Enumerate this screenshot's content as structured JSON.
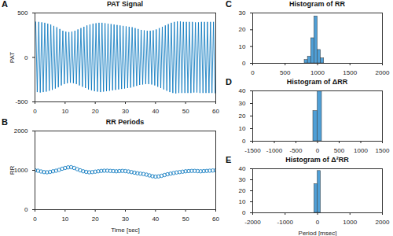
{
  "chart_data": [
    {
      "panel_label": "A",
      "type": "line",
      "title": "PAT Signal",
      "ylabel": "PAT",
      "color": "#0072bd",
      "xlim": [
        0,
        60
      ],
      "xticks": [
        0,
        10,
        20,
        30,
        40,
        50,
        60
      ],
      "ylim": [
        -500,
        500
      ],
      "yticks": [
        -500,
        0,
        500
      ],
      "x": [
        0.25,
        0.75,
        1.25,
        1.75,
        2.25,
        2.75,
        3.25,
        3.75,
        4.25,
        4.75,
        5.25,
        5.75,
        6.25,
        6.75,
        7.25,
        7.75,
        8.25,
        8.75,
        9.25,
        9.75,
        10.25,
        10.75,
        11.25,
        11.75,
        12.25,
        12.75,
        13.25,
        13.75,
        14.25,
        14.75,
        15.25,
        15.75,
        16.25,
        16.75,
        17.25,
        17.75,
        18.25,
        18.75,
        19.25,
        19.75,
        20.25,
        20.75,
        21.25,
        21.75,
        22.25,
        22.75,
        23.25,
        23.75,
        24.25,
        24.75,
        25.25,
        25.75,
        26.25,
        26.75,
        27.25,
        27.75,
        28.25,
        28.75,
        29.25,
        29.75,
        30.25,
        30.75,
        31.25,
        31.75,
        32.25,
        32.75,
        33.25,
        33.75,
        34.25,
        34.75,
        35.25,
        35.75,
        36.25,
        36.75,
        37.25,
        37.75,
        38.25,
        38.75,
        39.25,
        39.75,
        40.25,
        40.75,
        41.25,
        41.75,
        42.25,
        42.75,
        43.25,
        43.75,
        44.25,
        44.75,
        45.25,
        45.75,
        46.25,
        46.75,
        47.25,
        47.75,
        48.25,
        48.75,
        49.25,
        49.75,
        50.25,
        50.75,
        51.25,
        51.75,
        52.25,
        52.75,
        53.25,
        53.75,
        54.25,
        54.75,
        55.25,
        55.75,
        56.25,
        56.75,
        57.25,
        57.75,
        58.25,
        58.75,
        59.25,
        59.75
      ],
      "values": [
        400,
        -390,
        400,
        -395,
        395,
        -390,
        390,
        -385,
        380,
        -375,
        370,
        -365,
        355,
        -350,
        340,
        -335,
        320,
        -315,
        300,
        -300,
        290,
        -290,
        285,
        -285,
        290,
        -290,
        300,
        -300,
        315,
        -315,
        330,
        -330,
        345,
        -345,
        360,
        -360,
        370,
        -370,
        380,
        -380,
        385,
        -385,
        390,
        -390,
        390,
        -385,
        385,
        -380,
        380,
        -375,
        375,
        -370,
        370,
        -365,
        365,
        -360,
        360,
        -355,
        355,
        -350,
        350,
        -345,
        345,
        -340,
        340,
        -330,
        330,
        -320,
        320,
        -310,
        310,
        -305,
        305,
        -300,
        300,
        -300,
        300,
        -305,
        305,
        -315,
        315,
        -330,
        330,
        -345,
        345,
        -360,
        360,
        -375,
        375,
        -390,
        390,
        -400,
        400,
        -405,
        405,
        -400,
        405,
        -400,
        400,
        -400,
        400,
        -400,
        400,
        -400,
        400,
        -395,
        395,
        -395,
        395,
        -400,
        400,
        -400,
        400,
        -400,
        400,
        -400,
        400,
        -400,
        400,
        -400
      ]
    },
    {
      "panel_label": "B",
      "type": "scatter",
      "marker": "circle",
      "title": "RR Periods",
      "ylabel": "RR",
      "xlabel": "Time [sec]",
      "color": "#0072bd",
      "xlim": [
        0,
        60
      ],
      "xticks": [
        0,
        10,
        20,
        30,
        40,
        50,
        60
      ],
      "ylim": [
        0,
        2000
      ],
      "yticks": [
        0,
        1000,
        2000
      ],
      "x": [
        0,
        1,
        2,
        3,
        4,
        5,
        6,
        7,
        8,
        9,
        10,
        11,
        12,
        13,
        14,
        15,
        16,
        17,
        18,
        19,
        20,
        21,
        22,
        23,
        24,
        25,
        26,
        27,
        28,
        29,
        30,
        31,
        32,
        33,
        34,
        35,
        36,
        37,
        38,
        39,
        40,
        41,
        42,
        43,
        44,
        45,
        46,
        47,
        48,
        49,
        50,
        51,
        52,
        53,
        54,
        55,
        56,
        57,
        58,
        59,
        60
      ],
      "values": [
        1000,
        990,
        970,
        955,
        950,
        960,
        975,
        990,
        1010,
        1040,
        1060,
        1075,
        1080,
        1060,
        1030,
        1000,
        975,
        960,
        950,
        955,
        965,
        975,
        985,
        990,
        990,
        985,
        980,
        975,
        980,
        985,
        980,
        970,
        955,
        940,
        925,
        915,
        905,
        890,
        870,
        850,
        840,
        845,
        860,
        880,
        900,
        915,
        930,
        945,
        955,
        965,
        975,
        980,
        985,
        985,
        980,
        975,
        980,
        985,
        990,
        995,
        1000
      ]
    },
    {
      "panel_label": "C",
      "type": "histogram",
      "title": "Histogram of RR",
      "color": "#4f9fd6",
      "xlim": [
        0,
        2000
      ],
      "xticks": [
        0,
        500,
        1000,
        1500,
        2000
      ],
      "ylim": [
        0,
        30
      ],
      "yticks": [
        0,
        10,
        20,
        30
      ],
      "bins": [
        800,
        850,
        900,
        950,
        1000,
        1050,
        1100
      ],
      "values": [
        2,
        4,
        15,
        28,
        8,
        3
      ]
    },
    {
      "panel_label": "D",
      "type": "histogram",
      "title": "Histogram of ΔRR",
      "color": "#4f9fd6",
      "xlim": [
        -1500,
        1500
      ],
      "xticks": [
        -1500,
        -1000,
        -500,
        0,
        500,
        1000,
        1500
      ],
      "ylim": [
        0,
        40
      ],
      "yticks": [
        0,
        10,
        20,
        30,
        40
      ],
      "bins": [
        -100,
        0,
        100
      ],
      "values": [
        24,
        40
      ]
    },
    {
      "panel_label": "E",
      "type": "histogram",
      "title": "Histogram of Δ²RR",
      "xlabel": "Period [msec]",
      "color": "#4f9fd6",
      "xlim": [
        -2000,
        2000
      ],
      "xticks": [
        -2000,
        -1000,
        0,
        1000,
        2000
      ],
      "ylim": [
        0,
        40
      ],
      "yticks": [
        0,
        10,
        20,
        30,
        40
      ],
      "bins": [
        -100,
        0,
        100
      ],
      "values": [
        26,
        38
      ]
    }
  ]
}
